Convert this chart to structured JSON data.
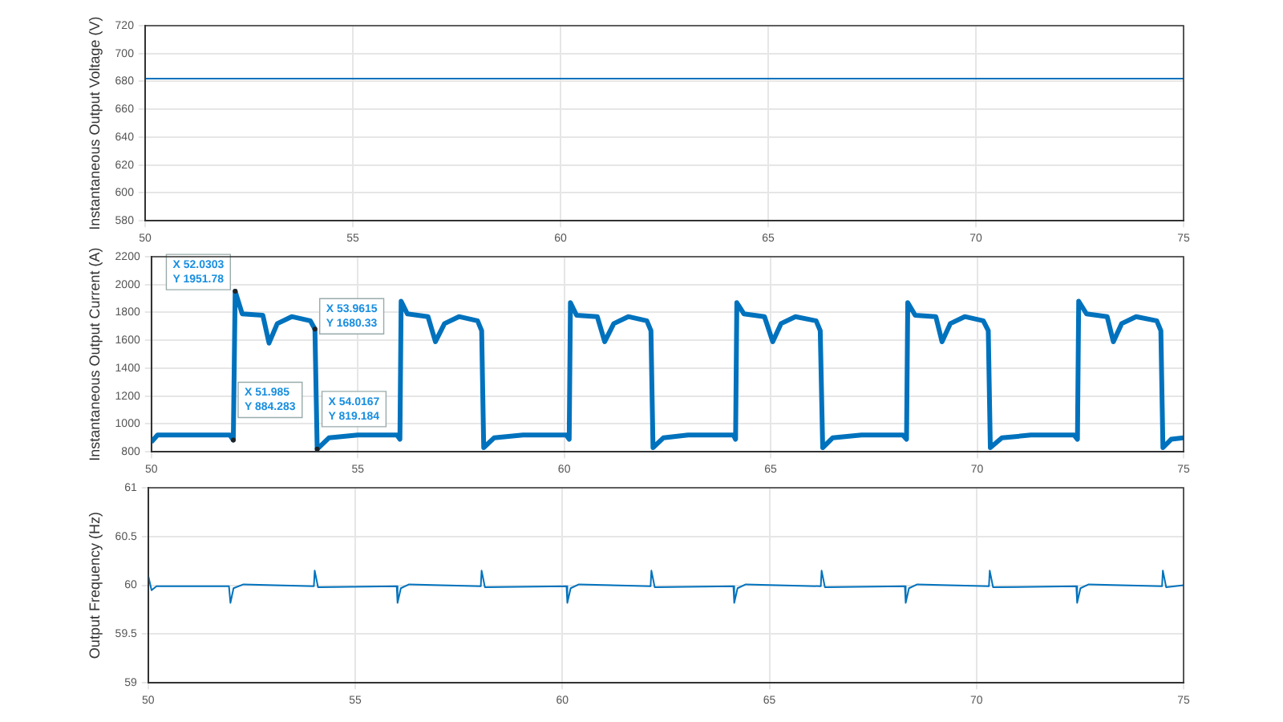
{
  "chart_data": [
    {
      "type": "line",
      "ylabel": "Instantaneous Output Voltage (V)",
      "xlim": [
        50,
        75
      ],
      "xticks": [
        50,
        55,
        60,
        65,
        70,
        75
      ],
      "ylim": [
        580,
        720
      ],
      "yticks": [
        580,
        600,
        620,
        640,
        660,
        680,
        700,
        720
      ],
      "grid": true,
      "legend": false,
      "series": [
        {
          "color": "#0072bd",
          "x": [
            50,
            55,
            60,
            65,
            70,
            75
          ],
          "values": [
            682,
            682,
            682,
            682,
            682,
            682
          ]
        }
      ]
    },
    {
      "type": "line",
      "ylabel": "Instantaneous Output Current (A)",
      "xlim": [
        50,
        75
      ],
      "xticks": [
        50,
        55,
        60,
        65,
        70,
        75
      ],
      "ylim": [
        800,
        2200
      ],
      "yticks": [
        800,
        1000,
        1200,
        1400,
        1600,
        1800,
        2000,
        2200
      ],
      "grid": true,
      "legend": false,
      "annotations": [
        {
          "text": "X 52.0303\nY 1951.78",
          "x": 52.0303,
          "y": 1951.78
        },
        {
          "text": "X 53.9615\nY 1680.33",
          "x": 53.9615,
          "y": 1680.33
        },
        {
          "text": "X 51.985\nY 884.283",
          "x": 51.985,
          "y": 884.283
        },
        {
          "text": "X 54.0167\nY 819.184",
          "x": 54.0167,
          "y": 819.184
        }
      ],
      "series": [
        {
          "color": "#0072bd",
          "x": [
            50,
            50.15,
            51,
            51.9,
            51.985,
            52.0303,
            52.2,
            52.7,
            52.85,
            53.05,
            53.4,
            53.85,
            53.9615,
            54.0167,
            54.3,
            55,
            55.95,
            56.02,
            56.05,
            56.2,
            56.7,
            56.88,
            57.1,
            57.45,
            57.9,
            58.0,
            58.05,
            58.3,
            59,
            60.05,
            60.12,
            60.15,
            60.3,
            60.8,
            60.98,
            61.2,
            61.55,
            62.0,
            62.1,
            62.15,
            62.4,
            63,
            64.1,
            64.15,
            64.18,
            64.35,
            64.85,
            65.05,
            65.25,
            65.6,
            66.1,
            66.2,
            66.26,
            66.5,
            67.2,
            68.2,
            68.29,
            68.32,
            68.5,
            69.0,
            69.15,
            69.35,
            69.7,
            70.15,
            70.27,
            70.32,
            70.6,
            71.3,
            72.35,
            72.43,
            72.46,
            72.65,
            73.15,
            73.3,
            73.5,
            73.85,
            74.35,
            74.45,
            74.5,
            74.7,
            75
          ],
          "values": [
            870,
            920,
            920,
            920,
            884.283,
            1951.78,
            1790,
            1780,
            1580,
            1720,
            1770,
            1740,
            1680.33,
            819.184,
            900,
            920,
            920,
            890,
            1880,
            1790,
            1770,
            1590,
            1720,
            1770,
            1740,
            1670,
            830,
            900,
            920,
            920,
            890,
            1870,
            1780,
            1770,
            1590,
            1720,
            1770,
            1740,
            1670,
            830,
            900,
            920,
            920,
            890,
            1870,
            1790,
            1770,
            1590,
            1720,
            1770,
            1740,
            1670,
            830,
            900,
            920,
            920,
            890,
            1870,
            1780,
            1770,
            1590,
            1720,
            1770,
            1740,
            1670,
            830,
            900,
            920,
            920,
            890,
            1880,
            1790,
            1770,
            1590,
            1720,
            1770,
            1740,
            1670,
            830,
            890,
            900
          ]
        }
      ]
    },
    {
      "type": "line",
      "ylabel": "Output Frequency (Hz)",
      "xlim": [
        50,
        75
      ],
      "xticks": [
        50,
        55,
        60,
        65,
        70,
        75
      ],
      "ylim": [
        59,
        61
      ],
      "yticks": [
        59,
        59.5,
        60,
        60.5,
        61
      ],
      "grid": true,
      "legend": false,
      "series": [
        {
          "color": "#0072bd",
          "x": [
            50,
            50.08,
            50.2,
            51.95,
            51.985,
            52.06,
            52.3,
            54.0,
            54.02,
            54.1,
            56.0,
            56.02,
            56.1,
            56.3,
            58.03,
            58.05,
            58.13,
            60.1,
            60.12,
            60.2,
            60.4,
            62.13,
            62.15,
            62.23,
            64.13,
            64.15,
            64.23,
            64.43,
            66.24,
            66.26,
            66.34,
            68.27,
            68.29,
            68.37,
            68.57,
            70.3,
            70.32,
            70.4,
            72.41,
            72.43,
            72.51,
            72.71,
            74.48,
            74.5,
            74.58,
            75
          ],
          "values": [
            60.1,
            59.95,
            59.99,
            59.99,
            59.82,
            59.97,
            60.01,
            59.99,
            60.15,
            59.98,
            59.99,
            59.82,
            59.97,
            60.01,
            59.99,
            60.15,
            59.98,
            59.99,
            59.82,
            59.97,
            60.01,
            59.99,
            60.15,
            59.98,
            59.99,
            59.82,
            59.97,
            60.01,
            59.99,
            60.15,
            59.98,
            59.99,
            59.82,
            59.97,
            60.01,
            59.99,
            60.15,
            59.98,
            59.99,
            59.82,
            59.97,
            60.01,
            59.99,
            60.15,
            59.98,
            60.0
          ]
        }
      ]
    }
  ]
}
